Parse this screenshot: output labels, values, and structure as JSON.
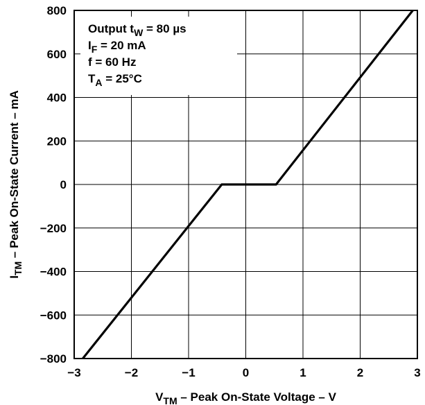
{
  "chart_data": {
    "type": "line",
    "xlabel": {
      "main": "V",
      "sub": "TM",
      "rest": " – Peak On-State Voltage – V"
    },
    "ylabel": {
      "main": "I",
      "sub": "TM",
      "rest": " – Peak On-State Current – mA"
    },
    "xlim": [
      -3,
      3
    ],
    "ylim": [
      -800,
      800
    ],
    "x_ticks": [
      -3,
      -2,
      -1,
      0,
      1,
      2,
      3
    ],
    "y_ticks": [
      -800,
      -600,
      -400,
      -200,
      0,
      200,
      400,
      600,
      800
    ],
    "x_tick_labels": [
      "−3",
      "−2",
      "−1",
      "0",
      "1",
      "2",
      "3"
    ],
    "y_tick_labels": [
      "−800",
      "−600",
      "−400",
      "−200",
      "0",
      "200",
      "400",
      "600",
      "800"
    ],
    "grid": true,
    "series": [
      {
        "x": [
          -2.85,
          -0.42,
          0.53,
          2.92
        ],
        "y": [
          -800,
          0,
          0,
          800
        ]
      }
    ],
    "annotations": [
      {
        "pre": "Output t",
        "sub": "W",
        "post": " = 80 µs"
      },
      {
        "pre": "I",
        "sub": "F",
        "post": " = 20 mA"
      },
      {
        "pre": "f = 60 Hz",
        "sub": "",
        "post": ""
      },
      {
        "pre": "T",
        "sub": "A",
        "post": " = 25°C"
      }
    ]
  }
}
